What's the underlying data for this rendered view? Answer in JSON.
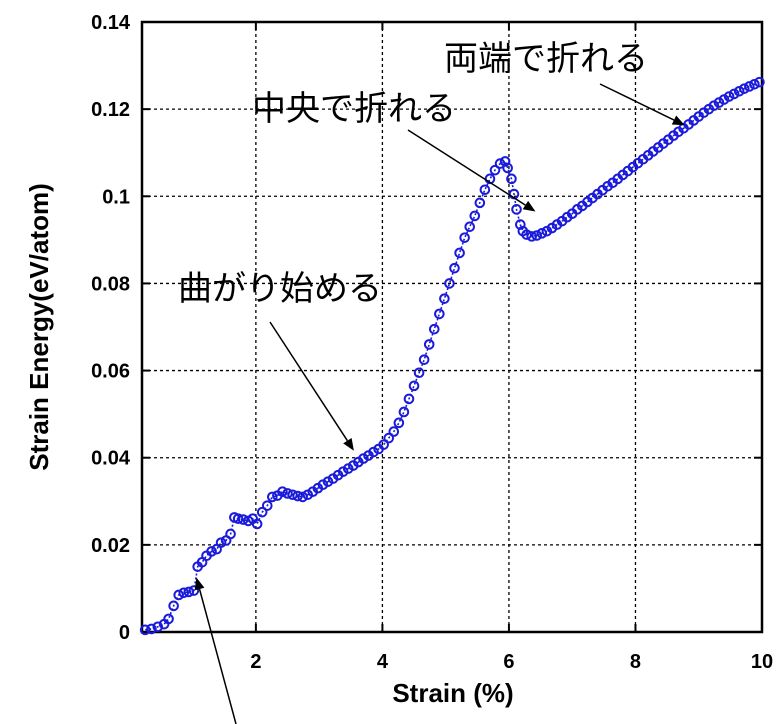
{
  "chart_data": {
    "type": "scatter",
    "xlabel": "Strain (%)",
    "ylabel": "Strain Energy(eV/atom)",
    "xlim": [
      0.2,
      10
    ],
    "ylim": [
      0,
      0.14
    ],
    "x_ticks": [
      2,
      4,
      6,
      8,
      10
    ],
    "y_ticks": [
      0,
      0.02,
      0.04,
      0.06,
      0.08,
      0.1,
      0.12,
      0.14
    ],
    "x_tick_labels": [
      "2",
      "4",
      "6",
      "8",
      "10"
    ],
    "y_tick_labels": [
      "0",
      "0.02",
      "0.04",
      "0.06",
      "0.08",
      "0.1",
      "0.12",
      "0.14"
    ],
    "grid": true,
    "marker": "open-circle",
    "series": [
      {
        "color": "#1a1adb",
        "points": [
          [
            0.25,
            0.0005
          ],
          [
            0.35,
            0.0007
          ],
          [
            0.45,
            0.0012
          ],
          [
            0.55,
            0.0018
          ],
          [
            0.62,
            0.003
          ],
          [
            0.7,
            0.006
          ],
          [
            0.78,
            0.0085
          ],
          [
            0.86,
            0.009
          ],
          [
            0.94,
            0.0092
          ],
          [
            1.02,
            0.0095
          ],
          [
            1.08,
            0.015
          ],
          [
            1.15,
            0.016
          ],
          [
            1.22,
            0.0175
          ],
          [
            1.3,
            0.0185
          ],
          [
            1.38,
            0.019
          ],
          [
            1.45,
            0.0205
          ],
          [
            1.53,
            0.021
          ],
          [
            1.6,
            0.0225
          ],
          [
            1.66,
            0.0263
          ],
          [
            1.72,
            0.026
          ],
          [
            1.8,
            0.0258
          ],
          [
            1.88,
            0.0255
          ],
          [
            1.95,
            0.026
          ],
          [
            2.02,
            0.0248
          ],
          [
            2.1,
            0.0275
          ],
          [
            2.18,
            0.029
          ],
          [
            2.26,
            0.031
          ],
          [
            2.34,
            0.0313
          ],
          [
            2.42,
            0.0322
          ],
          [
            2.5,
            0.0318
          ],
          [
            2.58,
            0.0315
          ],
          [
            2.66,
            0.0312
          ],
          [
            2.74,
            0.031
          ],
          [
            2.82,
            0.0315
          ],
          [
            2.9,
            0.0322
          ],
          [
            2.98,
            0.033
          ],
          [
            3.06,
            0.0338
          ],
          [
            3.14,
            0.0345
          ],
          [
            3.22,
            0.0352
          ],
          [
            3.3,
            0.036
          ],
          [
            3.38,
            0.0368
          ],
          [
            3.46,
            0.0375
          ],
          [
            3.54,
            0.0382
          ],
          [
            3.62,
            0.039
          ],
          [
            3.7,
            0.0398
          ],
          [
            3.78,
            0.0405
          ],
          [
            3.86,
            0.0413
          ],
          [
            3.94,
            0.042
          ],
          [
            4.02,
            0.043
          ],
          [
            4.1,
            0.0445
          ],
          [
            4.18,
            0.046
          ],
          [
            4.26,
            0.048
          ],
          [
            4.34,
            0.0505
          ],
          [
            4.42,
            0.0535
          ],
          [
            4.5,
            0.0565
          ],
          [
            4.58,
            0.0595
          ],
          [
            4.66,
            0.0625
          ],
          [
            4.74,
            0.066
          ],
          [
            4.82,
            0.0695
          ],
          [
            4.9,
            0.073
          ],
          [
            4.98,
            0.0765
          ],
          [
            5.06,
            0.08
          ],
          [
            5.14,
            0.0835
          ],
          [
            5.22,
            0.087
          ],
          [
            5.3,
            0.0905
          ],
          [
            5.38,
            0.093
          ],
          [
            5.46,
            0.0955
          ],
          [
            5.54,
            0.0985
          ],
          [
            5.62,
            0.1015
          ],
          [
            5.7,
            0.104
          ],
          [
            5.78,
            0.106
          ],
          [
            5.86,
            0.1075
          ],
          [
            5.94,
            0.108
          ],
          [
            5.98,
            0.1065
          ],
          [
            6.04,
            0.104
          ],
          [
            6.08,
            0.1005
          ],
          [
            6.12,
            0.097
          ],
          [
            6.18,
            0.0935
          ],
          [
            6.22,
            0.092
          ],
          [
            6.28,
            0.0912
          ],
          [
            6.36,
            0.0908
          ],
          [
            6.44,
            0.091
          ],
          [
            6.52,
            0.0915
          ],
          [
            6.6,
            0.092
          ],
          [
            6.68,
            0.0927
          ],
          [
            6.76,
            0.0935
          ],
          [
            6.84,
            0.0943
          ],
          [
            6.92,
            0.0952
          ],
          [
            7.0,
            0.096
          ],
          [
            7.08,
            0.097
          ],
          [
            7.16,
            0.0978
          ],
          [
            7.24,
            0.0987
          ],
          [
            7.32,
            0.0996
          ],
          [
            7.4,
            0.1005
          ],
          [
            7.48,
            0.1014
          ],
          [
            7.56,
            0.1023
          ],
          [
            7.64,
            0.1031
          ],
          [
            7.72,
            0.104
          ],
          [
            7.8,
            0.1049
          ],
          [
            7.88,
            0.1058
          ],
          [
            7.96,
            0.1067
          ],
          [
            8.04,
            0.1076
          ],
          [
            8.12,
            0.1085
          ],
          [
            8.2,
            0.1094
          ],
          [
            8.28,
            0.1103
          ],
          [
            8.36,
            0.1112
          ],
          [
            8.44,
            0.1121
          ],
          [
            8.52,
            0.113
          ],
          [
            8.6,
            0.1139
          ],
          [
            8.68,
            0.1148
          ],
          [
            8.76,
            0.1156
          ],
          [
            8.84,
            0.1165
          ],
          [
            8.92,
            0.1174
          ],
          [
            9.0,
            0.1183
          ],
          [
            9.08,
            0.1192
          ],
          [
            9.16,
            0.12
          ],
          [
            9.24,
            0.1208
          ],
          [
            9.32,
            0.1215
          ],
          [
            9.4,
            0.1222
          ],
          [
            9.48,
            0.1229
          ],
          [
            9.56,
            0.1235
          ],
          [
            9.64,
            0.1241
          ],
          [
            9.72,
            0.1247
          ],
          [
            9.8,
            0.1252
          ],
          [
            9.88,
            0.1257
          ],
          [
            9.96,
            0.1262
          ]
        ]
      }
    ],
    "annotations": [
      {
        "text": "両端で折れる",
        "arrow_to": [
          8.78,
          0.1163
        ]
      },
      {
        "text": "中央で折れる",
        "arrow_to": [
          6.42,
          0.0965
        ]
      },
      {
        "text": "曲がり始める",
        "arrow_to": [
          3.55,
          0.0416
        ]
      },
      {
        "text": "",
        "arrow_to": [
          1.06,
          0.0125
        ]
      }
    ]
  }
}
